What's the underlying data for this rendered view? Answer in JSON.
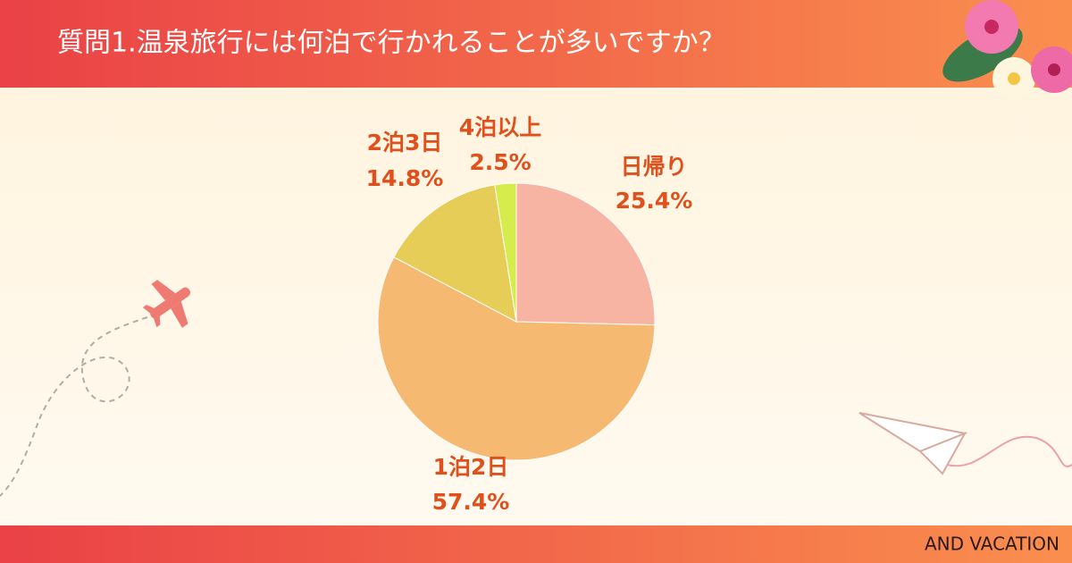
{
  "chart_data": {
    "type": "pie",
    "title": "質問1.温泉旅行には何泊で行かれることが多いですか？",
    "categories": [
      "日帰り",
      "1泊2日",
      "2泊3日",
      "4泊以上"
    ],
    "values": [
      25.4,
      57.4,
      14.8,
      2.5
    ],
    "value_labels": [
      "25.4%",
      "57.4%",
      "14.8%",
      "2.5%"
    ],
    "colors": [
      "#f7b4a3",
      "#f5b972",
      "#e6cd58",
      "#d6ec4c"
    ]
  },
  "footer": "AND VACATION"
}
